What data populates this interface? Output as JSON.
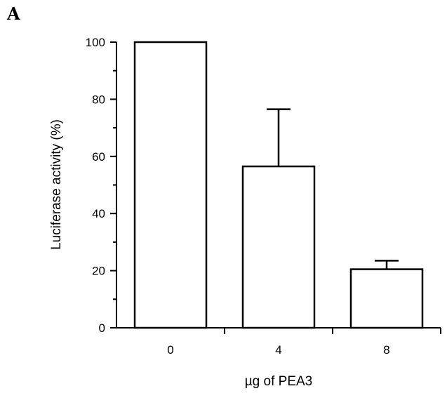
{
  "chart_data": {
    "type": "bar",
    "panel_label": "A",
    "title": "",
    "xlabel": "µg of PEA3",
    "ylabel": "Luciferase activity (%)",
    "categories": [
      "0",
      "4",
      "8"
    ],
    "values": [
      100,
      56.5,
      20.5
    ],
    "error_upper": [
      0,
      20,
      3
    ],
    "ylim": [
      0,
      100
    ],
    "yticks": [
      0,
      20,
      40,
      60,
      80,
      100
    ],
    "grid": false,
    "bar_fill": "#ffffff",
    "bar_stroke": "#000000"
  }
}
